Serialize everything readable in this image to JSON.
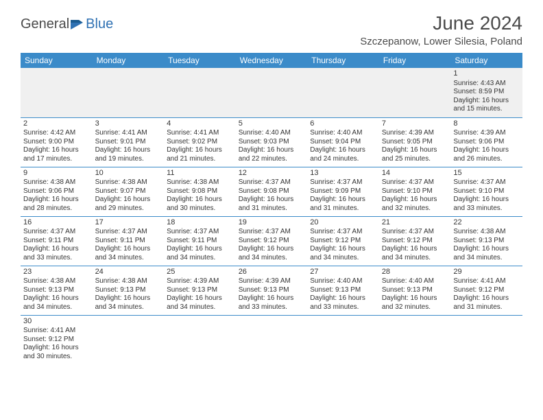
{
  "logo": {
    "text1": "General",
    "text2": "Blue"
  },
  "title": "June 2024",
  "location": "Szczepanow, Lower Silesia, Poland",
  "colors": {
    "header_bg": "#3b8bc9",
    "header_text": "#ffffff",
    "cell_border": "#3b8bc9",
    "first_row_bg": "#f0f0f0",
    "text": "#333333",
    "logo_gray": "#4a4a4a",
    "logo_blue": "#2f71b3"
  },
  "weekdays": [
    "Sunday",
    "Monday",
    "Tuesday",
    "Wednesday",
    "Thursday",
    "Friday",
    "Saturday"
  ],
  "weeks": [
    [
      null,
      null,
      null,
      null,
      null,
      null,
      {
        "n": "1",
        "sr": "Sunrise: 4:43 AM",
        "ss": "Sunset: 8:59 PM",
        "d1": "Daylight: 16 hours",
        "d2": "and 15 minutes."
      }
    ],
    [
      {
        "n": "2",
        "sr": "Sunrise: 4:42 AM",
        "ss": "Sunset: 9:00 PM",
        "d1": "Daylight: 16 hours",
        "d2": "and 17 minutes."
      },
      {
        "n": "3",
        "sr": "Sunrise: 4:41 AM",
        "ss": "Sunset: 9:01 PM",
        "d1": "Daylight: 16 hours",
        "d2": "and 19 minutes."
      },
      {
        "n": "4",
        "sr": "Sunrise: 4:41 AM",
        "ss": "Sunset: 9:02 PM",
        "d1": "Daylight: 16 hours",
        "d2": "and 21 minutes."
      },
      {
        "n": "5",
        "sr": "Sunrise: 4:40 AM",
        "ss": "Sunset: 9:03 PM",
        "d1": "Daylight: 16 hours",
        "d2": "and 22 minutes."
      },
      {
        "n": "6",
        "sr": "Sunrise: 4:40 AM",
        "ss": "Sunset: 9:04 PM",
        "d1": "Daylight: 16 hours",
        "d2": "and 24 minutes."
      },
      {
        "n": "7",
        "sr": "Sunrise: 4:39 AM",
        "ss": "Sunset: 9:05 PM",
        "d1": "Daylight: 16 hours",
        "d2": "and 25 minutes."
      },
      {
        "n": "8",
        "sr": "Sunrise: 4:39 AM",
        "ss": "Sunset: 9:06 PM",
        "d1": "Daylight: 16 hours",
        "d2": "and 26 minutes."
      }
    ],
    [
      {
        "n": "9",
        "sr": "Sunrise: 4:38 AM",
        "ss": "Sunset: 9:06 PM",
        "d1": "Daylight: 16 hours",
        "d2": "and 28 minutes."
      },
      {
        "n": "10",
        "sr": "Sunrise: 4:38 AM",
        "ss": "Sunset: 9:07 PM",
        "d1": "Daylight: 16 hours",
        "d2": "and 29 minutes."
      },
      {
        "n": "11",
        "sr": "Sunrise: 4:38 AM",
        "ss": "Sunset: 9:08 PM",
        "d1": "Daylight: 16 hours",
        "d2": "and 30 minutes."
      },
      {
        "n": "12",
        "sr": "Sunrise: 4:37 AM",
        "ss": "Sunset: 9:08 PM",
        "d1": "Daylight: 16 hours",
        "d2": "and 31 minutes."
      },
      {
        "n": "13",
        "sr": "Sunrise: 4:37 AM",
        "ss": "Sunset: 9:09 PM",
        "d1": "Daylight: 16 hours",
        "d2": "and 31 minutes."
      },
      {
        "n": "14",
        "sr": "Sunrise: 4:37 AM",
        "ss": "Sunset: 9:10 PM",
        "d1": "Daylight: 16 hours",
        "d2": "and 32 minutes."
      },
      {
        "n": "15",
        "sr": "Sunrise: 4:37 AM",
        "ss": "Sunset: 9:10 PM",
        "d1": "Daylight: 16 hours",
        "d2": "and 33 minutes."
      }
    ],
    [
      {
        "n": "16",
        "sr": "Sunrise: 4:37 AM",
        "ss": "Sunset: 9:11 PM",
        "d1": "Daylight: 16 hours",
        "d2": "and 33 minutes."
      },
      {
        "n": "17",
        "sr": "Sunrise: 4:37 AM",
        "ss": "Sunset: 9:11 PM",
        "d1": "Daylight: 16 hours",
        "d2": "and 34 minutes."
      },
      {
        "n": "18",
        "sr": "Sunrise: 4:37 AM",
        "ss": "Sunset: 9:11 PM",
        "d1": "Daylight: 16 hours",
        "d2": "and 34 minutes."
      },
      {
        "n": "19",
        "sr": "Sunrise: 4:37 AM",
        "ss": "Sunset: 9:12 PM",
        "d1": "Daylight: 16 hours",
        "d2": "and 34 minutes."
      },
      {
        "n": "20",
        "sr": "Sunrise: 4:37 AM",
        "ss": "Sunset: 9:12 PM",
        "d1": "Daylight: 16 hours",
        "d2": "and 34 minutes."
      },
      {
        "n": "21",
        "sr": "Sunrise: 4:37 AM",
        "ss": "Sunset: 9:12 PM",
        "d1": "Daylight: 16 hours",
        "d2": "and 34 minutes."
      },
      {
        "n": "22",
        "sr": "Sunrise: 4:38 AM",
        "ss": "Sunset: 9:13 PM",
        "d1": "Daylight: 16 hours",
        "d2": "and 34 minutes."
      }
    ],
    [
      {
        "n": "23",
        "sr": "Sunrise: 4:38 AM",
        "ss": "Sunset: 9:13 PM",
        "d1": "Daylight: 16 hours",
        "d2": "and 34 minutes."
      },
      {
        "n": "24",
        "sr": "Sunrise: 4:38 AM",
        "ss": "Sunset: 9:13 PM",
        "d1": "Daylight: 16 hours",
        "d2": "and 34 minutes."
      },
      {
        "n": "25",
        "sr": "Sunrise: 4:39 AM",
        "ss": "Sunset: 9:13 PM",
        "d1": "Daylight: 16 hours",
        "d2": "and 34 minutes."
      },
      {
        "n": "26",
        "sr": "Sunrise: 4:39 AM",
        "ss": "Sunset: 9:13 PM",
        "d1": "Daylight: 16 hours",
        "d2": "and 33 minutes."
      },
      {
        "n": "27",
        "sr": "Sunrise: 4:40 AM",
        "ss": "Sunset: 9:13 PM",
        "d1": "Daylight: 16 hours",
        "d2": "and 33 minutes."
      },
      {
        "n": "28",
        "sr": "Sunrise: 4:40 AM",
        "ss": "Sunset: 9:13 PM",
        "d1": "Daylight: 16 hours",
        "d2": "and 32 minutes."
      },
      {
        "n": "29",
        "sr": "Sunrise: 4:41 AM",
        "ss": "Sunset: 9:12 PM",
        "d1": "Daylight: 16 hours",
        "d2": "and 31 minutes."
      }
    ],
    [
      {
        "n": "30",
        "sr": "Sunrise: 4:41 AM",
        "ss": "Sunset: 9:12 PM",
        "d1": "Daylight: 16 hours",
        "d2": "and 30 minutes."
      },
      null,
      null,
      null,
      null,
      null,
      null
    ]
  ]
}
